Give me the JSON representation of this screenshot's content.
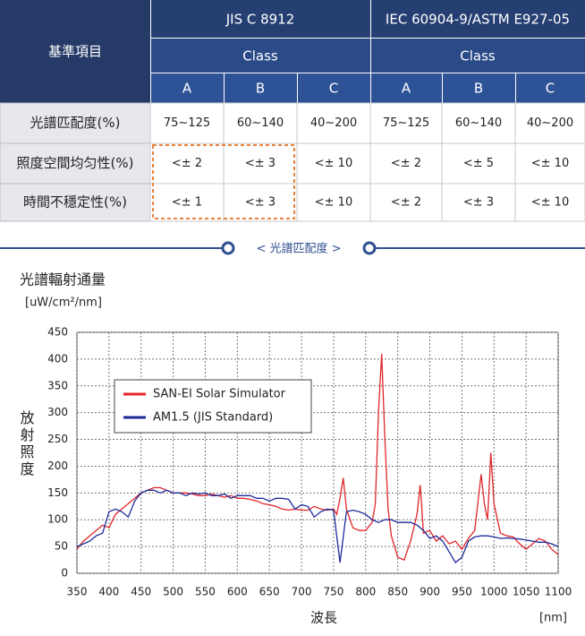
{
  "table": {
    "corner": "基準項目",
    "groups": [
      "JIS C 8912",
      "IEC 60904-9/ASTM E927-05"
    ],
    "subheaders": [
      "Class",
      "Class"
    ],
    "classes": [
      "A",
      "B",
      "C",
      "A",
      "B",
      "C"
    ],
    "rows": [
      [
        "光譜匹配度(%)",
        "75~125",
        "60~140",
        "40~200",
        "75~125",
        "60~140",
        "40~200"
      ],
      [
        "照度空間均匀性(%)",
        "<± 2",
        "<± 3",
        "<± 10",
        "<± 2",
        "<± 5",
        "<± 10"
      ],
      [
        "時間不穩定性(%)",
        "<± 1",
        "<± 3",
        "<± 10",
        "<± 2",
        "<± 3",
        "<± 10"
      ]
    ]
  },
  "section_label": "< 光譜匹配度 >",
  "chart_data": {
    "type": "line",
    "title": "光譜輻射通量",
    "y_unit": "[uW/cm²/nm]",
    "ylabel": "放射照度",
    "xlabel": "波長",
    "x_unit": "[nm]",
    "xlim": [
      350,
      1100
    ],
    "ylim": [
      0,
      450
    ],
    "xticks": [
      350,
      400,
      450,
      500,
      550,
      600,
      650,
      700,
      750,
      800,
      850,
      900,
      950,
      1000,
      1050,
      1100
    ],
    "yticks": [
      0,
      50,
      100,
      150,
      200,
      250,
      300,
      350,
      400,
      450
    ],
    "grid": true,
    "legend": "upper-left",
    "series": [
      {
        "name": "SAN-EI Solar Simulator",
        "color": "#e0262a",
        "x": [
          350,
          360,
          370,
          380,
          390,
          400,
          410,
          420,
          430,
          440,
          450,
          460,
          470,
          480,
          490,
          500,
          510,
          520,
          530,
          540,
          550,
          560,
          570,
          580,
          590,
          600,
          610,
          620,
          630,
          640,
          650,
          660,
          670,
          680,
          690,
          700,
          710,
          720,
          730,
          740,
          750,
          755,
          760,
          765,
          770,
          780,
          790,
          800,
          810,
          815,
          820,
          825,
          830,
          835,
          840,
          850,
          860,
          870,
          880,
          885,
          890,
          900,
          910,
          920,
          930,
          940,
          950,
          960,
          970,
          980,
          985,
          990,
          995,
          1000,
          1010,
          1020,
          1030,
          1040,
          1050,
          1060,
          1070,
          1080,
          1090,
          1100
        ],
        "values": [
          45,
          60,
          70,
          80,
          90,
          85,
          110,
          120,
          130,
          140,
          150,
          155,
          160,
          160,
          155,
          150,
          150,
          150,
          148,
          145,
          145,
          148,
          145,
          142,
          145,
          140,
          140,
          138,
          135,
          130,
          128,
          125,
          120,
          118,
          120,
          118,
          118,
          125,
          120,
          118,
          120,
          110,
          140,
          178,
          120,
          85,
          80,
          80,
          95,
          130,
          300,
          410,
          250,
          120,
          70,
          30,
          25,
          60,
          110,
          165,
          75,
          80,
          60,
          70,
          55,
          60,
          45,
          65,
          80,
          185,
          130,
          100,
          225,
          130,
          75,
          70,
          68,
          55,
          45,
          55,
          65,
          60,
          45,
          35
        ]
      },
      {
        "name": "AM1.5 (JIS Standard)",
        "color": "#1d2a9a",
        "x": [
          350,
          360,
          370,
          380,
          390,
          400,
          410,
          420,
          430,
          440,
          450,
          460,
          470,
          480,
          490,
          500,
          510,
          520,
          530,
          540,
          550,
          560,
          570,
          580,
          590,
          600,
          610,
          620,
          630,
          640,
          650,
          660,
          670,
          680,
          690,
          700,
          710,
          720,
          730,
          740,
          750,
          760,
          770,
          780,
          790,
          800,
          810,
          820,
          830,
          840,
          850,
          860,
          870,
          880,
          890,
          900,
          910,
          920,
          930,
          940,
          950,
          960,
          970,
          980,
          990,
          1000,
          1010,
          1020,
          1030,
          1040,
          1050,
          1060,
          1070,
          1080,
          1090,
          1100
        ],
        "values": [
          50,
          55,
          60,
          70,
          75,
          115,
          120,
          115,
          105,
          135,
          150,
          155,
          155,
          150,
          155,
          150,
          150,
          145,
          150,
          148,
          150,
          145,
          145,
          148,
          140,
          145,
          145,
          145,
          140,
          140,
          135,
          140,
          140,
          138,
          120,
          128,
          125,
          105,
          115,
          120,
          118,
          20,
          115,
          118,
          115,
          110,
          100,
          95,
          100,
          100,
          95,
          95,
          95,
          90,
          80,
          65,
          70,
          60,
          40,
          20,
          30,
          60,
          68,
          70,
          70,
          68,
          65,
          66,
          65,
          64,
          62,
          60,
          58,
          58,
          55,
          50
        ]
      }
    ]
  }
}
